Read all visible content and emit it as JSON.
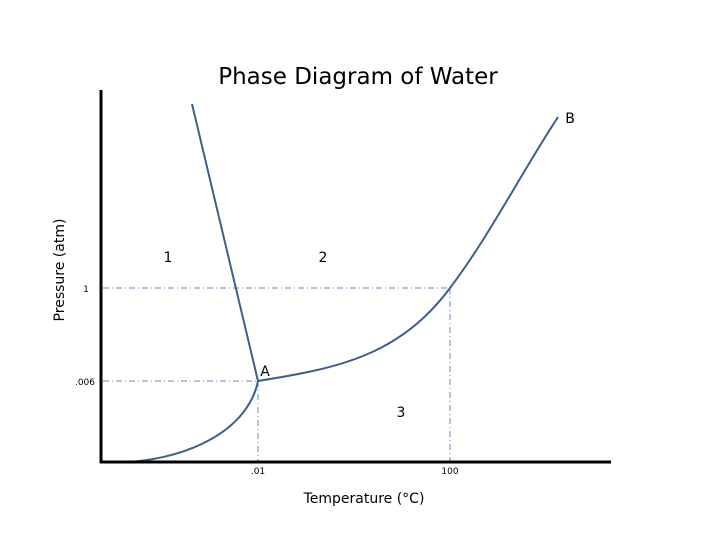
{
  "title": "Phase Diagram of Water",
  "x_axis": {
    "label": "Temperature (°C)",
    "ticks": [
      ".01",
      "100"
    ]
  },
  "y_axis": {
    "label": "Pressure (atm)",
    "ticks": [
      "1",
      ".006"
    ]
  },
  "regions": [
    "1",
    "2",
    "3"
  ],
  "points": {
    "triple": "A",
    "critical": "B"
  },
  "colors": {
    "curve": "#3d5f8c",
    "guide": "#6a8bb5",
    "axis": "#000000"
  }
}
